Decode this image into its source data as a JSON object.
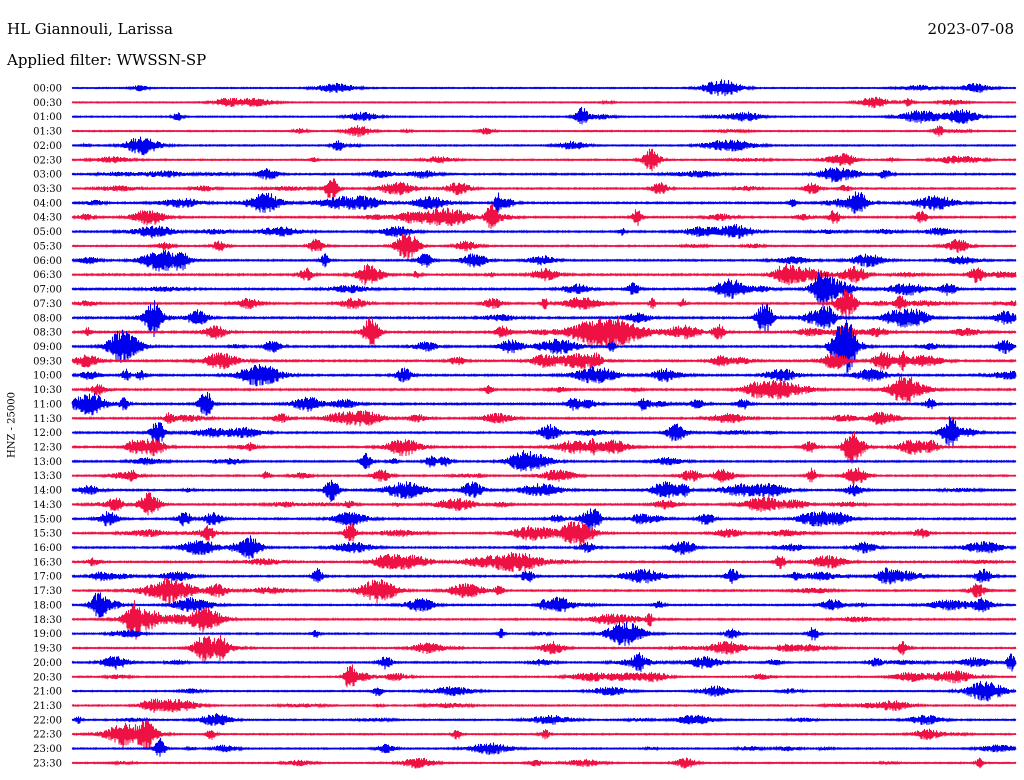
{
  "header": {
    "station": "HL Giannouli, Larissa",
    "date": "2023-07-08",
    "filter": "Applied filter: WWSSN-SP"
  },
  "channel_label": "HNZ - 25000",
  "colors": {
    "even_trace": "#0000ee",
    "odd_trace": "#ee1144",
    "text": "#000000",
    "background": "#ffffff"
  },
  "chart_data": {
    "type": "line",
    "title": "HL Giannouli, Larissa",
    "ylabel": "HNZ - 25000",
    "trace_labels": [
      "00:00",
      "00:30",
      "01:00",
      "01:30",
      "02:00",
      "02:30",
      "03:00",
      "03:30",
      "04:00",
      "04:30",
      "05:00",
      "05:30",
      "06:00",
      "06:30",
      "07:00",
      "07:30",
      "08:00",
      "08:30",
      "09:00",
      "09:30",
      "10:00",
      "10:30",
      "11:00",
      "11:30",
      "12:00",
      "12:30",
      "13:00",
      "13:30",
      "14:00",
      "14:30",
      "15:00",
      "15:30",
      "16:00",
      "16:30",
      "17:00",
      "17:30",
      "18:00",
      "18:30",
      "19:00",
      "19:30",
      "20:00",
      "20:30",
      "21:00",
      "21:30",
      "22:00",
      "22:30",
      "23:00",
      "23:30"
    ],
    "trace_activity": [
      0.35,
      0.3,
      0.45,
      0.4,
      0.45,
      0.5,
      0.65,
      0.6,
      0.8,
      0.75,
      0.7,
      0.55,
      0.7,
      0.85,
      0.8,
      0.75,
      0.9,
      0.9,
      0.85,
      0.85,
      0.8,
      0.8,
      0.85,
      0.75,
      0.75,
      0.8,
      0.7,
      0.65,
      0.75,
      0.75,
      0.8,
      0.7,
      0.7,
      0.7,
      0.75,
      0.7,
      0.65,
      0.7,
      0.55,
      0.6,
      0.65,
      0.5,
      0.45,
      0.5,
      0.55,
      0.5,
      0.5,
      0.45
    ],
    "legend": "none",
    "grid": false
  }
}
